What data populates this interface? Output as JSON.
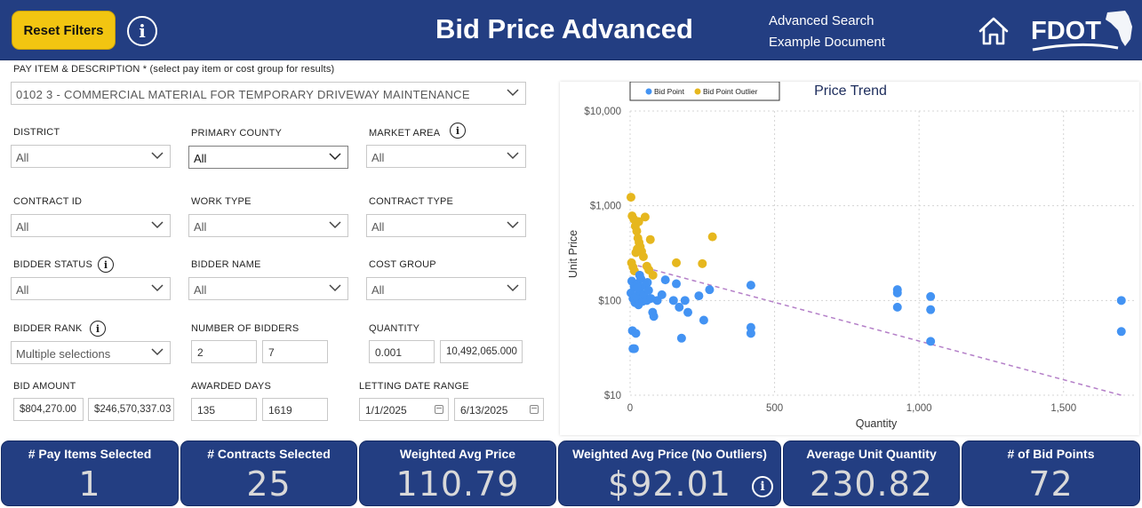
{
  "header": {
    "reset_label": "Reset Filters",
    "title": "Bid Price Advanced",
    "links": [
      "Advanced Search",
      "Example Document"
    ],
    "logo_text": "FDOT",
    "icons": [
      "info-icon",
      "home-icon",
      "fdot-logo"
    ]
  },
  "filters": {
    "pay_item": {
      "label": "PAY ITEM & DESCRIPTION * (select pay item or cost group for results)",
      "value": "0102 3 - COMMERCIAL MATERIAL FOR TEMPORARY DRIVEWAY MAINTENANCE"
    },
    "district": {
      "label": "DISTRICT",
      "value": "All"
    },
    "primary_county": {
      "label": "PRIMARY COUNTY",
      "value": "All"
    },
    "market_area": {
      "label": "MARKET AREA",
      "value": "All"
    },
    "contract_id": {
      "label": "CONTRACT ID",
      "value": "All"
    },
    "work_type": {
      "label": "WORK TYPE",
      "value": "All"
    },
    "contract_type": {
      "label": "CONTRACT TYPE",
      "value": "All"
    },
    "bidder_status": {
      "label": "BIDDER STATUS",
      "value": "All"
    },
    "bidder_name": {
      "label": "BIDDER NAME",
      "value": "All"
    },
    "cost_group": {
      "label": "COST GROUP",
      "value": "All"
    },
    "bidder_rank": {
      "label": "BIDDER RANK",
      "value": "Multiple selections"
    },
    "number_of_bidders": {
      "label": "NUMBER OF BIDDERS",
      "min": "2",
      "max": "7"
    },
    "quantity": {
      "label": "QUANTITY",
      "min": "0.001",
      "max": "10,492,065.000"
    },
    "bid_amount": {
      "label": "BID AMOUNT",
      "min": "$804,270.00",
      "max": "$246,570,337.03"
    },
    "awarded_days": {
      "label": "AWARDED DAYS",
      "min": "135",
      "max": "1619"
    },
    "letting_date": {
      "label": "LETTING DATE RANGE",
      "start": "1/1/2025",
      "end": "6/13/2025"
    }
  },
  "chart_data": {
    "type": "scatter",
    "title": "Price Trend",
    "xlabel": "Quantity",
    "ylabel": "Unit Price",
    "y_scale": "log",
    "xlim": [
      0,
      1750
    ],
    "ylim": [
      10,
      10000
    ],
    "x_ticks": [
      0,
      500,
      1000,
      1500
    ],
    "x_tick_labels": [
      "0",
      "500",
      "1,000",
      "1,500"
    ],
    "y_ticks": [
      10,
      100,
      1000,
      10000
    ],
    "y_tick_labels": [
      "$10",
      "$100",
      "$1,000",
      "$10,000"
    ],
    "grid": true,
    "legend_position": "top-left",
    "series": [
      {
        "name": "Bid Point",
        "color": "#4393f3",
        "points": [
          [
            3,
            120
          ],
          [
            6,
            160
          ],
          [
            10,
            105
          ],
          [
            14,
            140
          ],
          [
            17,
            95
          ],
          [
            22,
            110
          ],
          [
            26,
            150
          ],
          [
            29,
            90
          ],
          [
            33,
            125
          ],
          [
            37,
            170
          ],
          [
            44,
            98
          ],
          [
            48,
            115
          ],
          [
            52,
            142
          ],
          [
            58,
            100
          ],
          [
            64,
            128
          ],
          [
            72,
            105
          ],
          [
            78,
            75
          ],
          [
            82,
            68
          ],
          [
            94,
            100
          ],
          [
            122,
            165
          ],
          [
            150,
            100
          ],
          [
            160,
            150
          ],
          [
            170,
            85
          ],
          [
            178,
            40
          ],
          [
            190,
            100
          ],
          [
            200,
            75
          ],
          [
            238,
            112
          ],
          [
            255,
            62
          ],
          [
            275,
            130
          ],
          [
            418,
            145
          ],
          [
            418,
            52
          ],
          [
            418,
            45
          ],
          [
            925,
            130
          ],
          [
            925,
            120
          ],
          [
            925,
            85
          ],
          [
            1040,
            110
          ],
          [
            1040,
            80
          ],
          [
            1040,
            37
          ],
          [
            1700,
            100
          ],
          [
            1700,
            47
          ],
          [
            8,
            48
          ],
          [
            10,
            31
          ],
          [
            15,
            31
          ],
          [
            20,
            45
          ],
          [
            25,
            135
          ],
          [
            33,
            185
          ],
          [
            60,
            155
          ],
          [
            110,
            115
          ]
        ]
      },
      {
        "name": "Bid Point Outlier",
        "color": "#e6b71e",
        "points": [
          [
            3,
            1230
          ],
          [
            7,
            780
          ],
          [
            13,
            720
          ],
          [
            18,
            610
          ],
          [
            23,
            540
          ],
          [
            27,
            455
          ],
          [
            31,
            410
          ],
          [
            35,
            370
          ],
          [
            40,
            330
          ],
          [
            46,
            290
          ],
          [
            52,
            760
          ],
          [
            58,
            230
          ],
          [
            65,
            210
          ],
          [
            70,
            440
          ],
          [
            79,
            185
          ],
          [
            160,
            250
          ],
          [
            250,
            245
          ],
          [
            285,
            470
          ],
          [
            5,
            250
          ],
          [
            10,
            225
          ],
          [
            15,
            205
          ],
          [
            20,
            320
          ],
          [
            25,
            350
          ],
          [
            30,
            680
          ]
        ]
      }
    ],
    "trend_line": {
      "color": "#b47fc8",
      "from": [
        0,
        245
      ],
      "to": [
        1700,
        10
      ]
    }
  },
  "kpis": [
    {
      "label": "# Pay Items Selected",
      "value": "1"
    },
    {
      "label": "# Contracts Selected",
      "value": "25"
    },
    {
      "label": "Weighted Avg Price",
      "value": "110.79"
    },
    {
      "label": "Weighted Avg Price (No Outliers)",
      "value": "$92.01"
    },
    {
      "label": "Average Unit Quantity",
      "value": "230.82"
    },
    {
      "label": "# of Bid Points",
      "value": "72"
    }
  ]
}
